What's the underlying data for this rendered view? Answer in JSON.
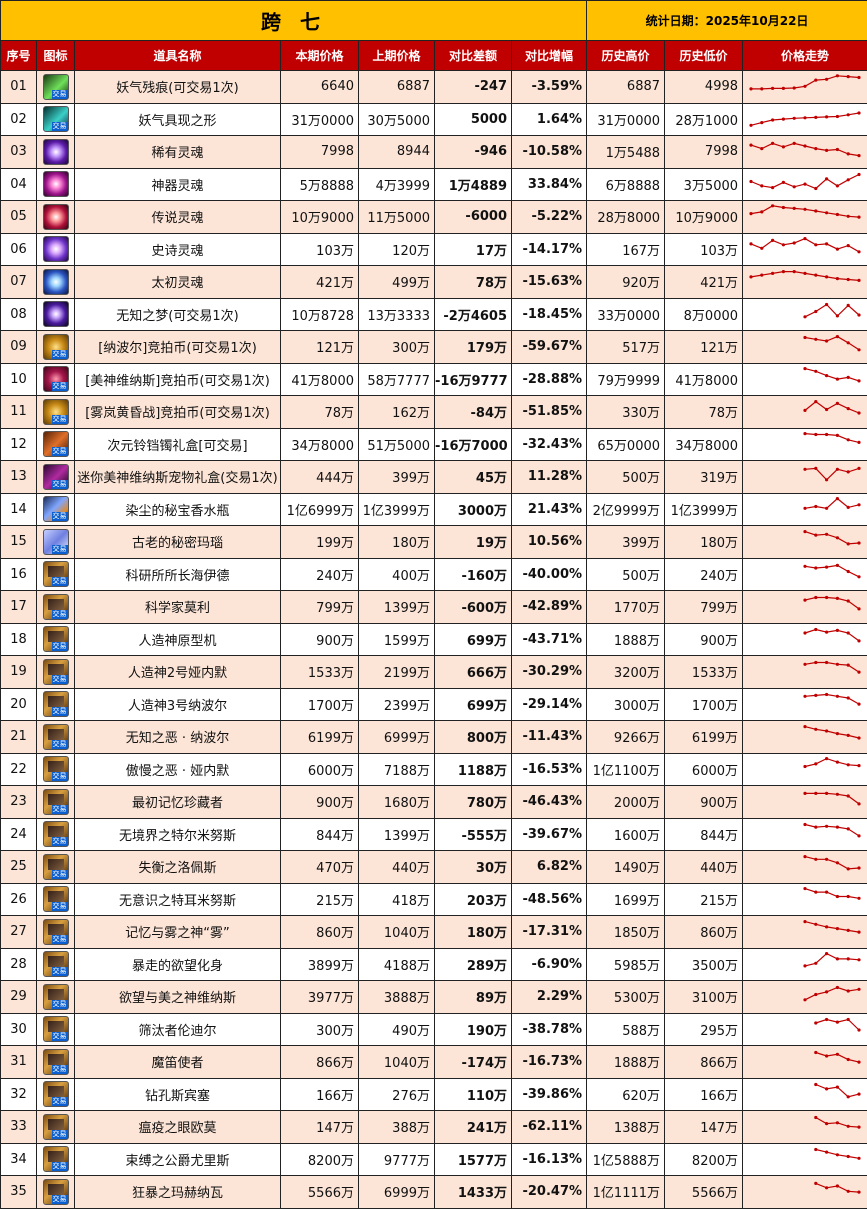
{
  "title": "跨 七",
  "date_label": "统计日期：2025年10月22日",
  "headers": [
    "序号",
    "图标",
    "道具名称",
    "本期价格",
    "上期价格",
    "对比差额",
    "对比增幅",
    "历史高价",
    "历史低价",
    "价格走势"
  ],
  "colors": {
    "title_bg": "#FFC000",
    "header_bg": "#C00000",
    "row_alt": "#FCE4D6",
    "up": "#FF0000",
    "down": "#00B050",
    "trend_line": "#C00000"
  },
  "rows": [
    {
      "idx": "01",
      "icon": "green-blade-icon",
      "tradable": "交易",
      "name": "妖气残痕(可交易1次)",
      "cur": "6640",
      "prev": "6887",
      "diff": "-247",
      "pct": "-3.59%",
      "high": "6887",
      "low": "4998",
      "dir": "down",
      "trend": [
        30,
        30,
        31,
        31,
        32,
        36,
        50,
        52,
        60,
        58,
        56
      ]
    },
    {
      "idx": "02",
      "icon": "teal-blade-icon",
      "tradable": "交易",
      "name": "妖气具现之形",
      "cur": "31万0000",
      "prev": "30万5000",
      "diff": "5000",
      "pct": "1.64%",
      "high": "31万0000",
      "low": "28万1000",
      "dir": "up",
      "trend": [
        20,
        26,
        32,
        34,
        36,
        37,
        38,
        39,
        40,
        44,
        48
      ]
    },
    {
      "idx": "03",
      "icon": "purple-soul-orb-icon",
      "name": "稀有灵魂",
      "cur": "7998",
      "prev": "8944",
      "diff": "-946",
      "pct": "-10.58%",
      "high": "1万5488",
      "low": "7998",
      "dir": "down",
      "trend": [
        50,
        42,
        54,
        46,
        54,
        48,
        42,
        38,
        40,
        30,
        26
      ]
    },
    {
      "idx": "04",
      "icon": "pink-soul-orb-icon",
      "name": "神器灵魂",
      "cur": "5万8888",
      "prev": "4万3999",
      "diff": "1万4889",
      "pct": "33.84%",
      "high": "6万8888",
      "low": "3万5000",
      "dir": "up",
      "trend": [
        40,
        30,
        26,
        38,
        28,
        34,
        24,
        46,
        30,
        44,
        56
      ]
    },
    {
      "idx": "05",
      "icon": "red-soul-orb-icon",
      "name": "传说灵魂",
      "cur": "10万9000",
      "prev": "11万5000",
      "diff": "-6000",
      "pct": "-5.22%",
      "high": "28万8000",
      "low": "10万9000",
      "dir": "down",
      "trend": [
        42,
        46,
        60,
        56,
        54,
        52,
        48,
        44,
        40,
        36,
        34
      ]
    },
    {
      "idx": "06",
      "icon": "lilac-soul-orb-icon",
      "name": "史诗灵魂",
      "cur": "103万",
      "prev": "120万",
      "diff": "17万",
      "pct": "-14.17%",
      "high": "167万",
      "low": "103万",
      "dir": "down",
      "trend": [
        46,
        36,
        54,
        44,
        48,
        58,
        44,
        46,
        34,
        42,
        28
      ]
    },
    {
      "idx": "07",
      "icon": "blue-soul-orb-icon",
      "name": "太初灵魂",
      "cur": "421万",
      "prev": "499万",
      "diff": "78万",
      "pct": "-15.63%",
      "high": "920万",
      "low": "421万",
      "dir": "down",
      "trend": [
        46,
        50,
        54,
        58,
        58,
        54,
        50,
        46,
        42,
        40,
        38
      ]
    },
    {
      "idx": "08",
      "icon": "violet-dream-orb-icon",
      "name": "无知之梦(可交易1次)",
      "cur": "10万8728",
      "prev": "13万3333",
      "diff": "-2万4605",
      "pct": "-18.45%",
      "high": "33万0000",
      "low": "8万0000",
      "dir": "down",
      "trend": [
        null,
        null,
        null,
        null,
        null,
        28,
        40,
        56,
        30,
        54,
        32
      ]
    },
    {
      "idx": "09",
      "icon": "gold-coin-icon",
      "tradable": "交易",
      "name": "[纳波尔]竞拍币(可交易1次)",
      "cur": "121万",
      "prev": "300万",
      "diff": "179万",
      "pct": "-59.67%",
      "high": "517万",
      "low": "121万",
      "dir": "down",
      "trend": [
        null,
        null,
        null,
        null,
        null,
        56,
        52,
        48,
        58,
        44,
        28
      ]
    },
    {
      "idx": "10",
      "icon": "crimson-coin-icon",
      "tradable": "交易",
      "name": "[美神维纳斯]竞拍币(可交易1次)",
      "cur": "41万8000",
      "prev": "58万7777",
      "diff": "-16万9777",
      "pct": "-28.88%",
      "high": "79万9999",
      "low": "41万8000",
      "dir": "down",
      "trend": [
        null,
        null,
        null,
        null,
        null,
        58,
        52,
        42,
        34,
        38,
        30
      ]
    },
    {
      "idx": "11",
      "icon": "gold-coin-icon",
      "tradable": "交易",
      "name": "[雾岚黄昏战]竞拍币(可交易1次)",
      "cur": "78万",
      "prev": "162万",
      "diff": "-84万",
      "pct": "-51.85%",
      "high": "330万",
      "low": "78万",
      "dir": "down",
      "trend": [
        null,
        null,
        null,
        null,
        null,
        38,
        58,
        40,
        54,
        42,
        32
      ]
    },
    {
      "idx": "12",
      "icon": "bell-giftbox-icon",
      "tradable": "交易",
      "name": "次元铃铛镯礼盒[可交易]",
      "cur": "34万8000",
      "prev": "51万5000",
      "diff": "-16万7000",
      "pct": "-32.43%",
      "high": "65万0000",
      "low": "34万8000",
      "dir": "down",
      "trend": [
        null,
        null,
        null,
        null,
        null,
        58,
        56,
        56,
        54,
        44,
        38
      ]
    },
    {
      "idx": "13",
      "icon": "pet-giftbox-icon",
      "tradable": "交易",
      "name": "迷你美神维纳斯宠物礼盒(交易1次)",
      "cur": "444万",
      "prev": "399万",
      "diff": "45万",
      "pct": "11.28%",
      "high": "500万",
      "low": "319万",
      "dir": "up",
      "trend": [
        null,
        null,
        null,
        null,
        null,
        52,
        54,
        28,
        52,
        46,
        54
      ]
    },
    {
      "idx": "14",
      "icon": "perfume-bottle-icon",
      "tradable": "交易",
      "name": "染尘的秘宝香水瓶",
      "cur": "1亿6999万",
      "prev": "1亿3999万",
      "diff": "3000万",
      "pct": "21.43%",
      "high": "2亿9999万",
      "low": "1亿3999万",
      "dir": "up",
      "trend": [
        null,
        null,
        null,
        null,
        null,
        36,
        40,
        36,
        58,
        38,
        44
      ]
    },
    {
      "idx": "15",
      "icon": "agate-gem-icon",
      "tradable": "交易",
      "name": "古老的秘密玛瑙",
      "cur": "199万",
      "prev": "180万",
      "diff": "19万",
      "pct": "10.56%",
      "high": "399万",
      "low": "180万",
      "dir": "up",
      "trend": [
        null,
        null,
        null,
        null,
        null,
        58,
        50,
        52,
        44,
        30,
        32
      ]
    },
    {
      "idx": "16",
      "icon": "card-icon",
      "tradable": "交易",
      "name": "科研所所长海伊德",
      "cur": "240万",
      "prev": "400万",
      "diff": "-160万",
      "pct": "-40.00%",
      "high": "500万",
      "low": "240万",
      "dir": "down",
      "trend": [
        null,
        null,
        null,
        null,
        null,
        52,
        48,
        50,
        54,
        40,
        28
      ]
    },
    {
      "idx": "17",
      "icon": "card-icon",
      "tradable": "交易",
      "name": "科学家莫利",
      "cur": "799万",
      "prev": "1399万",
      "diff": "-600万",
      "pct": "-42.89%",
      "high": "1770万",
      "low": "799万",
      "dir": "down",
      "trend": [
        null,
        null,
        null,
        null,
        null,
        50,
        56,
        56,
        54,
        48,
        30
      ]
    },
    {
      "idx": "18",
      "icon": "card-icon",
      "tradable": "交易",
      "name": "人造神原型机",
      "cur": "900万",
      "prev": "1599万",
      "diff": "699万",
      "pct": "-43.71%",
      "high": "1888万",
      "low": "900万",
      "dir": "down",
      "trend": [
        null,
        null,
        null,
        null,
        null,
        48,
        56,
        50,
        54,
        48,
        30
      ]
    },
    {
      "idx": "19",
      "icon": "card-icon",
      "tradable": "交易",
      "name": "人造神2号娅内默",
      "cur": "1533万",
      "prev": "2199万",
      "diff": "666万",
      "pct": "-30.29%",
      "high": "3200万",
      "low": "1533万",
      "dir": "down",
      "trend": [
        null,
        null,
        null,
        null,
        null,
        52,
        56,
        56,
        52,
        50,
        34
      ]
    },
    {
      "idx": "20",
      "icon": "card-icon",
      "tradable": "交易",
      "name": "人造神3号纳波尔",
      "cur": "1700万",
      "prev": "2399万",
      "diff": "699万",
      "pct": "-29.14%",
      "high": "3000万",
      "low": "1700万",
      "dir": "down",
      "trend": [
        null,
        null,
        null,
        null,
        null,
        52,
        54,
        56,
        52,
        48,
        34
      ]
    },
    {
      "idx": "21",
      "icon": "card-icon",
      "tradable": "交易",
      "name": "无知之恶 · 纳波尔",
      "cur": "6199万",
      "prev": "6999万",
      "diff": "800万",
      "pct": "-11.43%",
      "high": "9266万",
      "low": "6199万",
      "dir": "down",
      "trend": [
        null,
        null,
        null,
        null,
        null,
        58,
        52,
        48,
        42,
        38,
        32
      ]
    },
    {
      "idx": "22",
      "icon": "card-icon",
      "tradable": "交易",
      "name": "傲慢之恶 · 娅内默",
      "cur": "6000万",
      "prev": "7188万",
      "diff": "1188万",
      "pct": "-16.53%",
      "high": "1亿1100万",
      "low": "6000万",
      "dir": "down",
      "trend": [
        null,
        null,
        null,
        null,
        null,
        40,
        46,
        58,
        50,
        44,
        42
      ]
    },
    {
      "idx": "23",
      "icon": "card-icon",
      "tradable": "交易",
      "name": "最初记忆珍藏者",
      "cur": "900万",
      "prev": "1680万",
      "diff": "780万",
      "pct": "-46.43%",
      "high": "2000万",
      "low": "900万",
      "dir": "down",
      "trend": [
        null,
        null,
        null,
        null,
        null,
        54,
        54,
        54,
        52,
        48,
        30
      ]
    },
    {
      "idx": "24",
      "icon": "card-icon",
      "tradable": "交易",
      "name": "无境界之特尔米努斯",
      "cur": "844万",
      "prev": "1399万",
      "diff": "-555万",
      "pct": "-39.67%",
      "high": "1600万",
      "low": "844万",
      "dir": "down",
      "trend": [
        null,
        null,
        null,
        null,
        null,
        56,
        50,
        52,
        50,
        46,
        30
      ]
    },
    {
      "idx": "25",
      "icon": "card-icon",
      "tradable": "交易",
      "name": "失衡之洛佩斯",
      "cur": "470万",
      "prev": "440万",
      "diff": "30万",
      "pct": "6.82%",
      "high": "1490万",
      "low": "440万",
      "dir": "up",
      "trend": [
        null,
        null,
        null,
        null,
        null,
        58,
        52,
        52,
        44,
        30,
        32
      ]
    },
    {
      "idx": "26",
      "icon": "card-icon",
      "tradable": "交易",
      "name": "无意识之特耳米努斯",
      "cur": "215万",
      "prev": "418万",
      "diff": "203万",
      "pct": "-48.56%",
      "high": "1699万",
      "low": "215万",
      "dir": "down",
      "trend": [
        null,
        null,
        null,
        null,
        null,
        58,
        50,
        50,
        40,
        40,
        36
      ]
    },
    {
      "idx": "27",
      "icon": "card-icon",
      "tradable": "交易",
      "name": "记忆与雾之神“雾”",
      "cur": "860万",
      "prev": "1040万",
      "diff": "180万",
      "pct": "-17.31%",
      "high": "1850万",
      "low": "860万",
      "dir": "down",
      "trend": [
        null,
        null,
        null,
        null,
        null,
        58,
        52,
        46,
        42,
        38,
        34
      ]
    },
    {
      "idx": "28",
      "icon": "card-icon",
      "tradable": "交易",
      "name": "暴走的欲望化身",
      "cur": "3899万",
      "prev": "4188万",
      "diff": "289万",
      "pct": "-6.90%",
      "high": "5985万",
      "low": "3500万",
      "dir": "down",
      "trend": [
        null,
        null,
        null,
        null,
        null,
        30,
        36,
        58,
        46,
        46,
        44
      ]
    },
    {
      "idx": "29",
      "icon": "card-icon",
      "tradable": "交易",
      "name": "欲望与美之神维纳斯",
      "cur": "3977万",
      "prev": "3888万",
      "diff": "89万",
      "pct": "2.29%",
      "high": "5300万",
      "low": "3100万",
      "dir": "up",
      "trend": [
        null,
        null,
        null,
        null,
        null,
        28,
        40,
        46,
        56,
        48,
        52
      ]
    },
    {
      "idx": "30",
      "icon": "card-icon",
      "tradable": "交易",
      "name": "筛汰者伦迪尔",
      "cur": "300万",
      "prev": "490万",
      "diff": "190万",
      "pct": "-38.78%",
      "high": "588万",
      "low": "295万",
      "dir": "down",
      "trend": [
        null,
        null,
        null,
        null,
        null,
        null,
        48,
        56,
        50,
        56,
        32
      ]
    },
    {
      "idx": "31",
      "icon": "card-icon",
      "tradable": "交易",
      "name": "魔笛使者",
      "cur": "866万",
      "prev": "1040万",
      "diff": "-174万",
      "pct": "-16.73%",
      "high": "1888万",
      "low": "866万",
      "dir": "down",
      "trend": [
        null,
        null,
        null,
        null,
        null,
        null,
        56,
        48,
        52,
        40,
        34
      ]
    },
    {
      "idx": "32",
      "icon": "card-icon",
      "tradable": "交易",
      "name": "钻孔斯宾塞",
      "cur": "166万",
      "prev": "276万",
      "diff": "110万",
      "pct": "-39.86%",
      "high": "620万",
      "low": "166万",
      "dir": "down",
      "trend": [
        null,
        null,
        null,
        null,
        null,
        null,
        56,
        46,
        50,
        28,
        34
      ]
    },
    {
      "idx": "33",
      "icon": "card-icon",
      "tradable": "交易",
      "name": "瘟疫之眼欧莫",
      "cur": "147万",
      "prev": "388万",
      "diff": "241万",
      "pct": "-62.11%",
      "high": "1388万",
      "low": "147万",
      "dir": "down",
      "trend": [
        null,
        null,
        null,
        null,
        null,
        null,
        56,
        42,
        44,
        36,
        34
      ]
    },
    {
      "idx": "34",
      "icon": "card-icon",
      "tradable": "交易",
      "name": "束缚之公爵尤里斯",
      "cur": "8200万",
      "prev": "9777万",
      "diff": "1577万",
      "pct": "-16.13%",
      "high": "1亿5888万",
      "low": "8200万",
      "dir": "down",
      "trend": [
        null,
        null,
        null,
        null,
        null,
        null,
        56,
        50,
        44,
        40,
        36
      ]
    },
    {
      "idx": "35",
      "icon": "card-icon",
      "tradable": "交易",
      "name": "狂暴之玛赫纳瓦",
      "cur": "5566万",
      "prev": "6999万",
      "diff": "1433万",
      "pct": "-20.47%",
      "high": "1亿1111万",
      "low": "5566万",
      "dir": "down",
      "trend": [
        null,
        null,
        null,
        null,
        null,
        null,
        54,
        44,
        48,
        36,
        34
      ]
    }
  ]
}
